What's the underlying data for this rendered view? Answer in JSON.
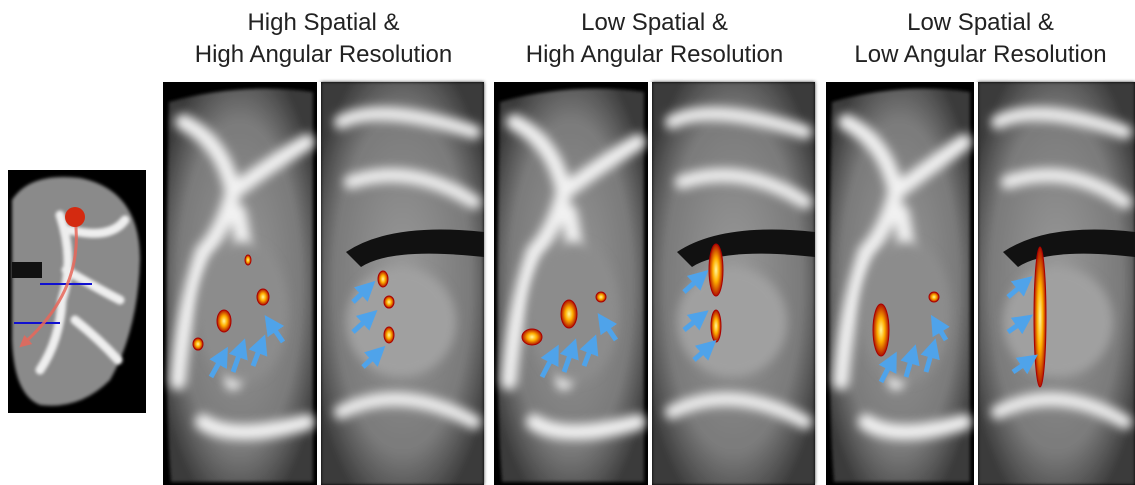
{
  "panels": [
    {
      "title": [
        "High Spatial &",
        "High Angular Resolution"
      ]
    },
    {
      "title": [
        "Low Spatial &",
        "High Angular Resolution"
      ]
    },
    {
      "title": [
        "Low Spatial &",
        "Low Angular Resolution"
      ]
    }
  ]
}
